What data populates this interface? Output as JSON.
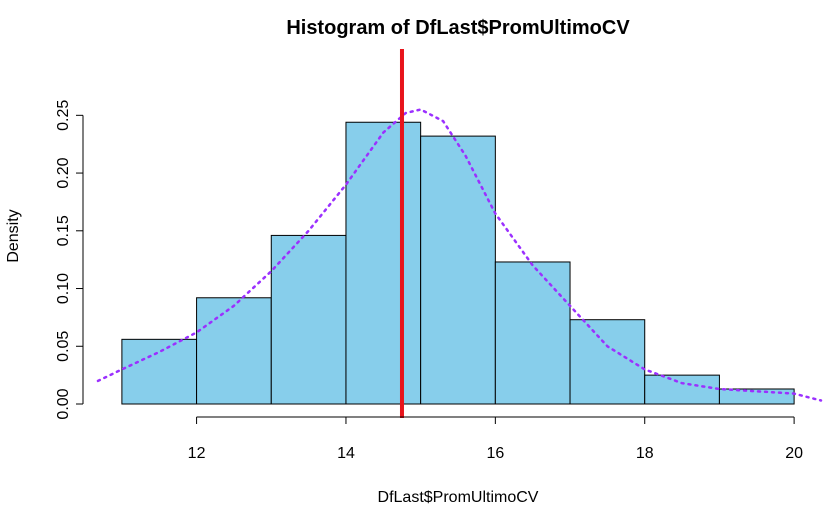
{
  "chart_data": {
    "type": "bar",
    "title": "Histogram of DfLast$PromUltimoCV",
    "xlabel": "DfLast$PromUltimoCV",
    "ylabel": "Density",
    "bins": [
      {
        "start": 11,
        "end": 12,
        "density": 0.056
      },
      {
        "start": 12,
        "end": 13,
        "density": 0.092
      },
      {
        "start": 13,
        "end": 14,
        "density": 0.146
      },
      {
        "start": 14,
        "end": 15,
        "density": 0.244
      },
      {
        "start": 15,
        "end": 16,
        "density": 0.232
      },
      {
        "start": 16,
        "end": 17,
        "density": 0.123
      },
      {
        "start": 17,
        "end": 18,
        "density": 0.073
      },
      {
        "start": 18,
        "end": 19,
        "density": 0.025
      },
      {
        "start": 19,
        "end": 20,
        "density": 0.013
      }
    ],
    "x_ticks": [
      "12",
      "14",
      "16",
      "18",
      "20"
    ],
    "y_ticks": [
      "0.00",
      "0.05",
      "0.10",
      "0.15",
      "0.20",
      "0.25"
    ],
    "xlim": [
      10.64,
      20.36
    ],
    "ylim": [
      0,
      0.265
    ],
    "bar_color": "#87CEEB",
    "vline": {
      "x": 14.75,
      "color": "#E8141B"
    },
    "density_curve": {
      "color": "#9B30FF",
      "style": "dotted",
      "points": [
        [
          10.68,
          0.02
        ],
        [
          11.0,
          0.03
        ],
        [
          11.5,
          0.045
        ],
        [
          12.0,
          0.062
        ],
        [
          12.5,
          0.085
        ],
        [
          13.0,
          0.115
        ],
        [
          13.5,
          0.15
        ],
        [
          14.0,
          0.19
        ],
        [
          14.5,
          0.235
        ],
        [
          14.8,
          0.252
        ],
        [
          15.0,
          0.255
        ],
        [
          15.3,
          0.245
        ],
        [
          15.6,
          0.215
        ],
        [
          16.0,
          0.165
        ],
        [
          16.5,
          0.12
        ],
        [
          17.0,
          0.085
        ],
        [
          17.5,
          0.05
        ],
        [
          18.0,
          0.03
        ],
        [
          18.5,
          0.018
        ],
        [
          19.0,
          0.013
        ],
        [
          19.5,
          0.011
        ],
        [
          20.0,
          0.009
        ],
        [
          20.36,
          0.003
        ]
      ]
    },
    "grid": false,
    "legend": "none"
  }
}
